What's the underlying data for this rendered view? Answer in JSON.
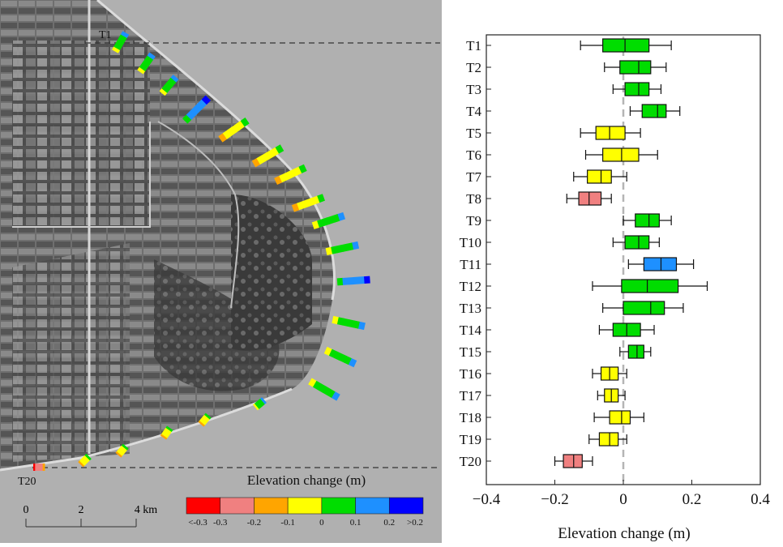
{
  "map": {
    "transect_top_label": "T1",
    "transect_bottom_label": "T20",
    "legend_title": "Elevation change (m)",
    "legend_colors": [
      "#ff0000",
      "#f08080",
      "#ffa500",
      "#ffff00",
      "#00dd00",
      "#1e90ff",
      "#0000ff"
    ],
    "legend_ticks": [
      "<-0.3",
      "-0.3",
      "-0.2",
      "-0.1",
      "0",
      "0.1",
      "0.2",
      ">0.2"
    ],
    "scale_ticks": [
      "0",
      "2",
      "4 km"
    ]
  },
  "chart_data": {
    "type": "box",
    "orientation": "horizontal",
    "categories": [
      "T1",
      "T2",
      "T3",
      "T4",
      "T5",
      "T6",
      "T7",
      "T8",
      "T9",
      "T10",
      "T11",
      "T12",
      "T13",
      "T14",
      "T15",
      "T16",
      "T17",
      "T18",
      "T19",
      "T20"
    ],
    "boxes": [
      {
        "whisker_low": -0.125,
        "q1": -0.06,
        "median": 0.005,
        "q3": 0.075,
        "whisker_high": 0.14,
        "color": "#00dd00"
      },
      {
        "whisker_low": -0.055,
        "q1": -0.01,
        "median": 0.045,
        "q3": 0.08,
        "whisker_high": 0.125,
        "color": "#00dd00"
      },
      {
        "whisker_low": -0.03,
        "q1": 0.005,
        "median": 0.045,
        "q3": 0.075,
        "whisker_high": 0.11,
        "color": "#00dd00"
      },
      {
        "whisker_low": 0.02,
        "q1": 0.055,
        "median": 0.1,
        "q3": 0.125,
        "whisker_high": 0.165,
        "color": "#00dd00"
      },
      {
        "whisker_low": -0.125,
        "q1": -0.08,
        "median": -0.04,
        "q3": 0.005,
        "whisker_high": 0.05,
        "color": "#ffff00"
      },
      {
        "whisker_low": -0.11,
        "q1": -0.06,
        "median": -0.005,
        "q3": 0.045,
        "whisker_high": 0.1,
        "color": "#ffff00"
      },
      {
        "whisker_low": -0.145,
        "q1": -0.105,
        "median": -0.065,
        "q3": -0.035,
        "whisker_high": 0.01,
        "color": "#ffff00"
      },
      {
        "whisker_low": -0.165,
        "q1": -0.13,
        "median": -0.1,
        "q3": -0.065,
        "whisker_high": -0.035,
        "color": "#f08080"
      },
      {
        "whisker_low": 0.0,
        "q1": 0.035,
        "median": 0.075,
        "q3": 0.105,
        "whisker_high": 0.14,
        "color": "#00dd00"
      },
      {
        "whisker_low": -0.03,
        "q1": 0.005,
        "median": 0.045,
        "q3": 0.075,
        "whisker_high": 0.105,
        "color": "#00dd00"
      },
      {
        "whisker_low": 0.015,
        "q1": 0.06,
        "median": 0.11,
        "q3": 0.155,
        "whisker_high": 0.205,
        "color": "#1e90ff"
      },
      {
        "whisker_low": -0.09,
        "q1": -0.005,
        "median": 0.07,
        "q3": 0.16,
        "whisker_high": 0.245,
        "color": "#00dd00"
      },
      {
        "whisker_low": -0.06,
        "q1": 0.0,
        "median": 0.08,
        "q3": 0.12,
        "whisker_high": 0.175,
        "color": "#00dd00"
      },
      {
        "whisker_low": -0.07,
        "q1": -0.03,
        "median": 0.01,
        "q3": 0.05,
        "whisker_high": 0.09,
        "color": "#00dd00"
      },
      {
        "whisker_low": -0.01,
        "q1": 0.015,
        "median": 0.04,
        "q3": 0.06,
        "whisker_high": 0.08,
        "color": "#00dd00"
      },
      {
        "whisker_low": -0.09,
        "q1": -0.065,
        "median": -0.04,
        "q3": -0.015,
        "whisker_high": 0.01,
        "color": "#ffff00"
      },
      {
        "whisker_low": -0.075,
        "q1": -0.055,
        "median": -0.035,
        "q3": -0.015,
        "whisker_high": 0.005,
        "color": "#ffff00"
      },
      {
        "whisker_low": -0.085,
        "q1": -0.04,
        "median": -0.005,
        "q3": 0.02,
        "whisker_high": 0.06,
        "color": "#ffff00"
      },
      {
        "whisker_low": -0.1,
        "q1": -0.07,
        "median": -0.04,
        "q3": -0.015,
        "whisker_high": 0.01,
        "color": "#ffff00"
      },
      {
        "whisker_low": -0.2,
        "q1": -0.175,
        "median": -0.145,
        "q3": -0.12,
        "whisker_high": -0.09,
        "color": "#f08080"
      }
    ],
    "xlabel": "Elevation change (m)",
    "xlim": [
      -0.4,
      0.4
    ],
    "xticks": [
      "-0.4",
      "-0.2",
      "0",
      "0.2",
      "0.4"
    ],
    "reference_line": 0,
    "grid": false
  }
}
